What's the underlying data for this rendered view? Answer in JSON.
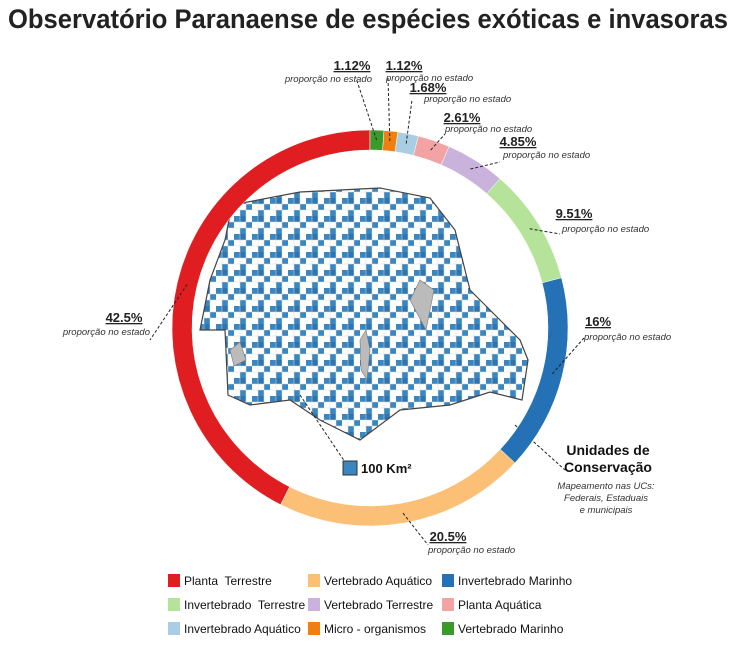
{
  "chart_data": {
    "type": "donut",
    "title": "Observatório Paranaense de espécies exóticas e invasoras",
    "categories": [
      "Planta  Terrestre",
      "Vertebrado Aquático",
      "Invertebrado Marinho",
      "Invertebrado  Terrestre",
      "Vertebrado Terrestre",
      "Planta Aquática",
      "Invertebrado Aquático",
      "Micro - organismos",
      "Vertebrado Marinho"
    ],
    "values": [
      42.5,
      20.5,
      16,
      9.51,
      4.85,
      2.61,
      1.68,
      1.12,
      1.12
    ],
    "value_labels": [
      "42.5%",
      "20.5%",
      "16%",
      "9.51%",
      "4.85%",
      "2.61%",
      "1.68%",
      "1.12%",
      "1.12%"
    ],
    "colors": [
      "#e01e22",
      "#fbbf76",
      "#2471b5",
      "#b5e39a",
      "#c9b3dc",
      "#f4a3a4",
      "#a9cde2",
      "#f07f12",
      "#3a9b2a"
    ],
    "label_note": "proporção no estado",
    "map": {
      "scale_label": "100 Km²",
      "conservation_title": [
        "Unidades de",
        "Conservação"
      ],
      "conservation_note": [
        "Mapeamento nas UCs:",
        "Federais, Estaduais",
        "e municipais"
      ]
    }
  }
}
